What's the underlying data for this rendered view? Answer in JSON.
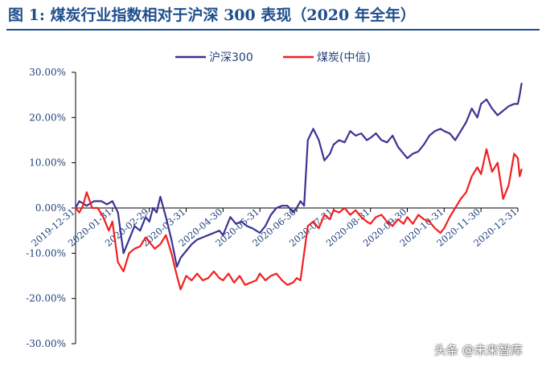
{
  "title": "图 1:  煤炭行业指数相对于沪深 300 表现（2020 年全年）",
  "watermark": "头条 @未来智库",
  "chart_data": {
    "type": "line",
    "title": "煤炭行业指数相对于沪深 300 表现（2020 年全年）",
    "xlabel": "",
    "ylabel": "",
    "ylim": [
      -30,
      30
    ],
    "yticks": [
      30,
      20,
      10,
      0,
      -10,
      -20,
      -30
    ],
    "ytick_labels": [
      "30.00%",
      "20.00%",
      "10.00%",
      "0.00%",
      "-10.00%",
      "-20.00%",
      "-30.00%"
    ],
    "x_range": [
      0,
      12
    ],
    "xticks": [
      0,
      1,
      2,
      3,
      4,
      5,
      6,
      7,
      8,
      9,
      10,
      11,
      12
    ],
    "xtick_labels": [
      "2019-12-31",
      "2020-01-31",
      "2020-02-29",
      "2020-03-31",
      "2020-04-30",
      "2020-05-31",
      "2020-06-30",
      "2020-07-31",
      "2020-08-31",
      "2020-09-30",
      "2020-10-31",
      "2020-11-30",
      "2020-12-31"
    ],
    "legend_position": "top",
    "grid": false,
    "series": [
      {
        "name": "沪深300",
        "color": "#3b3393",
        "x": [
          0.0,
          0.1,
          0.3,
          0.5,
          0.7,
          0.85,
          1.0,
          1.15,
          1.3,
          1.45,
          1.6,
          1.75,
          1.9,
          2.0,
          2.1,
          2.2,
          2.3,
          2.45,
          2.6,
          2.75,
          2.85,
          3.0,
          3.15,
          3.3,
          3.45,
          3.6,
          3.75,
          3.9,
          4.0,
          4.1,
          4.2,
          4.35,
          4.5,
          4.65,
          4.8,
          5.0,
          5.15,
          5.3,
          5.45,
          5.6,
          5.75,
          5.9,
          6.0,
          6.1,
          6.2,
          6.3,
          6.45,
          6.6,
          6.75,
          6.9,
          7.0,
          7.15,
          7.3,
          7.45,
          7.6,
          7.75,
          7.9,
          8.0,
          8.15,
          8.3,
          8.45,
          8.6,
          8.75,
          8.9,
          9.0,
          9.15,
          9.3,
          9.45,
          9.6,
          9.75,
          9.9,
          10.0,
          10.15,
          10.3,
          10.45,
          10.6,
          10.75,
          10.9,
          11.0,
          11.15,
          11.3,
          11.45,
          11.6,
          11.75,
          11.9,
          12.0,
          12.05,
          12.1
        ],
        "values": [
          0.0,
          1.5,
          0.5,
          1.5,
          1.5,
          0.8,
          1.5,
          -1.0,
          -10.0,
          -7.0,
          -4.0,
          -5.0,
          -2.0,
          -3.0,
          0.0,
          -1.0,
          2.5,
          -2.0,
          -7.0,
          -13.0,
          -11.0,
          -9.5,
          -8.0,
          -7.0,
          -6.5,
          -6.0,
          -5.5,
          -5.0,
          -6.0,
          -4.0,
          -2.0,
          -3.5,
          -3.0,
          -4.0,
          -4.5,
          -5.5,
          -4.0,
          -1.5,
          0.0,
          0.5,
          0.5,
          -1.0,
          0.0,
          1.5,
          0.5,
          15.0,
          17.5,
          15.0,
          10.5,
          12.0,
          14.0,
          15.0,
          14.5,
          17.0,
          16.0,
          16.5,
          15.0,
          15.5,
          16.5,
          15.0,
          14.5,
          16.0,
          13.5,
          12.0,
          11.0,
          12.0,
          12.5,
          14.0,
          16.0,
          17.0,
          17.5,
          17.0,
          16.5,
          15.0,
          17.0,
          19.0,
          22.0,
          20.0,
          23.0,
          24.0,
          22.0,
          20.5,
          21.5,
          22.5,
          23.0,
          23.0,
          25.0,
          27.5
        ]
      },
      {
        "name": "煤炭(中信)",
        "color": "#f21f1f",
        "x": [
          0.0,
          0.1,
          0.2,
          0.3,
          0.45,
          0.6,
          0.75,
          0.9,
          1.0,
          1.15,
          1.3,
          1.45,
          1.6,
          1.75,
          1.9,
          2.0,
          2.15,
          2.3,
          2.45,
          2.6,
          2.75,
          2.85,
          3.0,
          3.15,
          3.3,
          3.45,
          3.6,
          3.75,
          3.9,
          4.0,
          4.15,
          4.3,
          4.45,
          4.6,
          4.75,
          4.9,
          5.0,
          5.15,
          5.3,
          5.45,
          5.6,
          5.75,
          5.9,
          6.0,
          6.1,
          6.2,
          6.3,
          6.45,
          6.6,
          6.75,
          6.9,
          7.0,
          7.15,
          7.3,
          7.45,
          7.6,
          7.75,
          7.9,
          8.0,
          8.15,
          8.3,
          8.45,
          8.6,
          8.75,
          8.9,
          9.0,
          9.15,
          9.3,
          9.45,
          9.6,
          9.75,
          9.9,
          10.0,
          10.15,
          10.3,
          10.45,
          10.6,
          10.75,
          10.9,
          11.0,
          11.15,
          11.3,
          11.45,
          11.6,
          11.75,
          11.9,
          12.0,
          12.05,
          12.1
        ],
        "values": [
          0.0,
          -1.0,
          0.5,
          3.5,
          0.0,
          0.0,
          -2.0,
          -5.0,
          -3.0,
          -12.0,
          -14.0,
          -10.0,
          -9.0,
          -8.5,
          -6.5,
          -7.5,
          -9.0,
          -8.0,
          -6.0,
          -10.0,
          -15.0,
          -18.0,
          -15.0,
          -16.0,
          -14.5,
          -16.0,
          -15.5,
          -14.0,
          -15.5,
          -16.0,
          -14.5,
          -16.5,
          -15.0,
          -17.0,
          -16.5,
          -16.0,
          -14.5,
          -16.0,
          -15.0,
          -14.5,
          -16.0,
          -17.0,
          -16.5,
          -15.5,
          -16.0,
          -10.0,
          -4.0,
          -3.0,
          -4.5,
          -1.5,
          -2.5,
          -0.5,
          -1.0,
          0.0,
          -1.5,
          -0.5,
          -2.0,
          -3.0,
          -3.5,
          -2.0,
          -1.5,
          -3.0,
          -4.0,
          -2.5,
          -3.5,
          -2.0,
          -3.5,
          -1.5,
          -2.5,
          -3.0,
          -4.5,
          -5.5,
          -4.5,
          -2.0,
          0.0,
          2.0,
          3.5,
          7.0,
          9.0,
          7.5,
          13.0,
          8.0,
          10.0,
          2.0,
          5.0,
          12.0,
          11.0,
          7.0,
          8.5
        ]
      }
    ]
  }
}
